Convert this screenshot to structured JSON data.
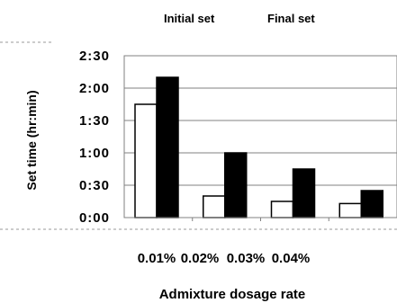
{
  "chart_data": {
    "type": "bar",
    "categories": [
      "0.01%",
      "0.02%",
      "0.03%",
      "0.04%"
    ],
    "series": [
      {
        "name": "Initial set",
        "values_min": [
          105,
          20,
          15,
          13
        ],
        "color": "#ffffff"
      },
      {
        "name": "Final set",
        "values_min": [
          130,
          60,
          45,
          25
        ],
        "color": "#000000"
      }
    ],
    "y_ticks": [
      {
        "value": 0,
        "label": "0:00"
      },
      {
        "value": 30,
        "label": "0:30"
      },
      {
        "value": 60,
        "label": "1:00"
      },
      {
        "value": 90,
        "label": "1:30"
      },
      {
        "value": 120,
        "label": "2:00"
      },
      {
        "value": 150,
        "label": "2:30"
      }
    ],
    "ylim": [
      0,
      150
    ],
    "ylabel": "Set time (hr:min)",
    "xlabel": "Admixture dosage rate",
    "grid": true,
    "legend_position": "top"
  }
}
